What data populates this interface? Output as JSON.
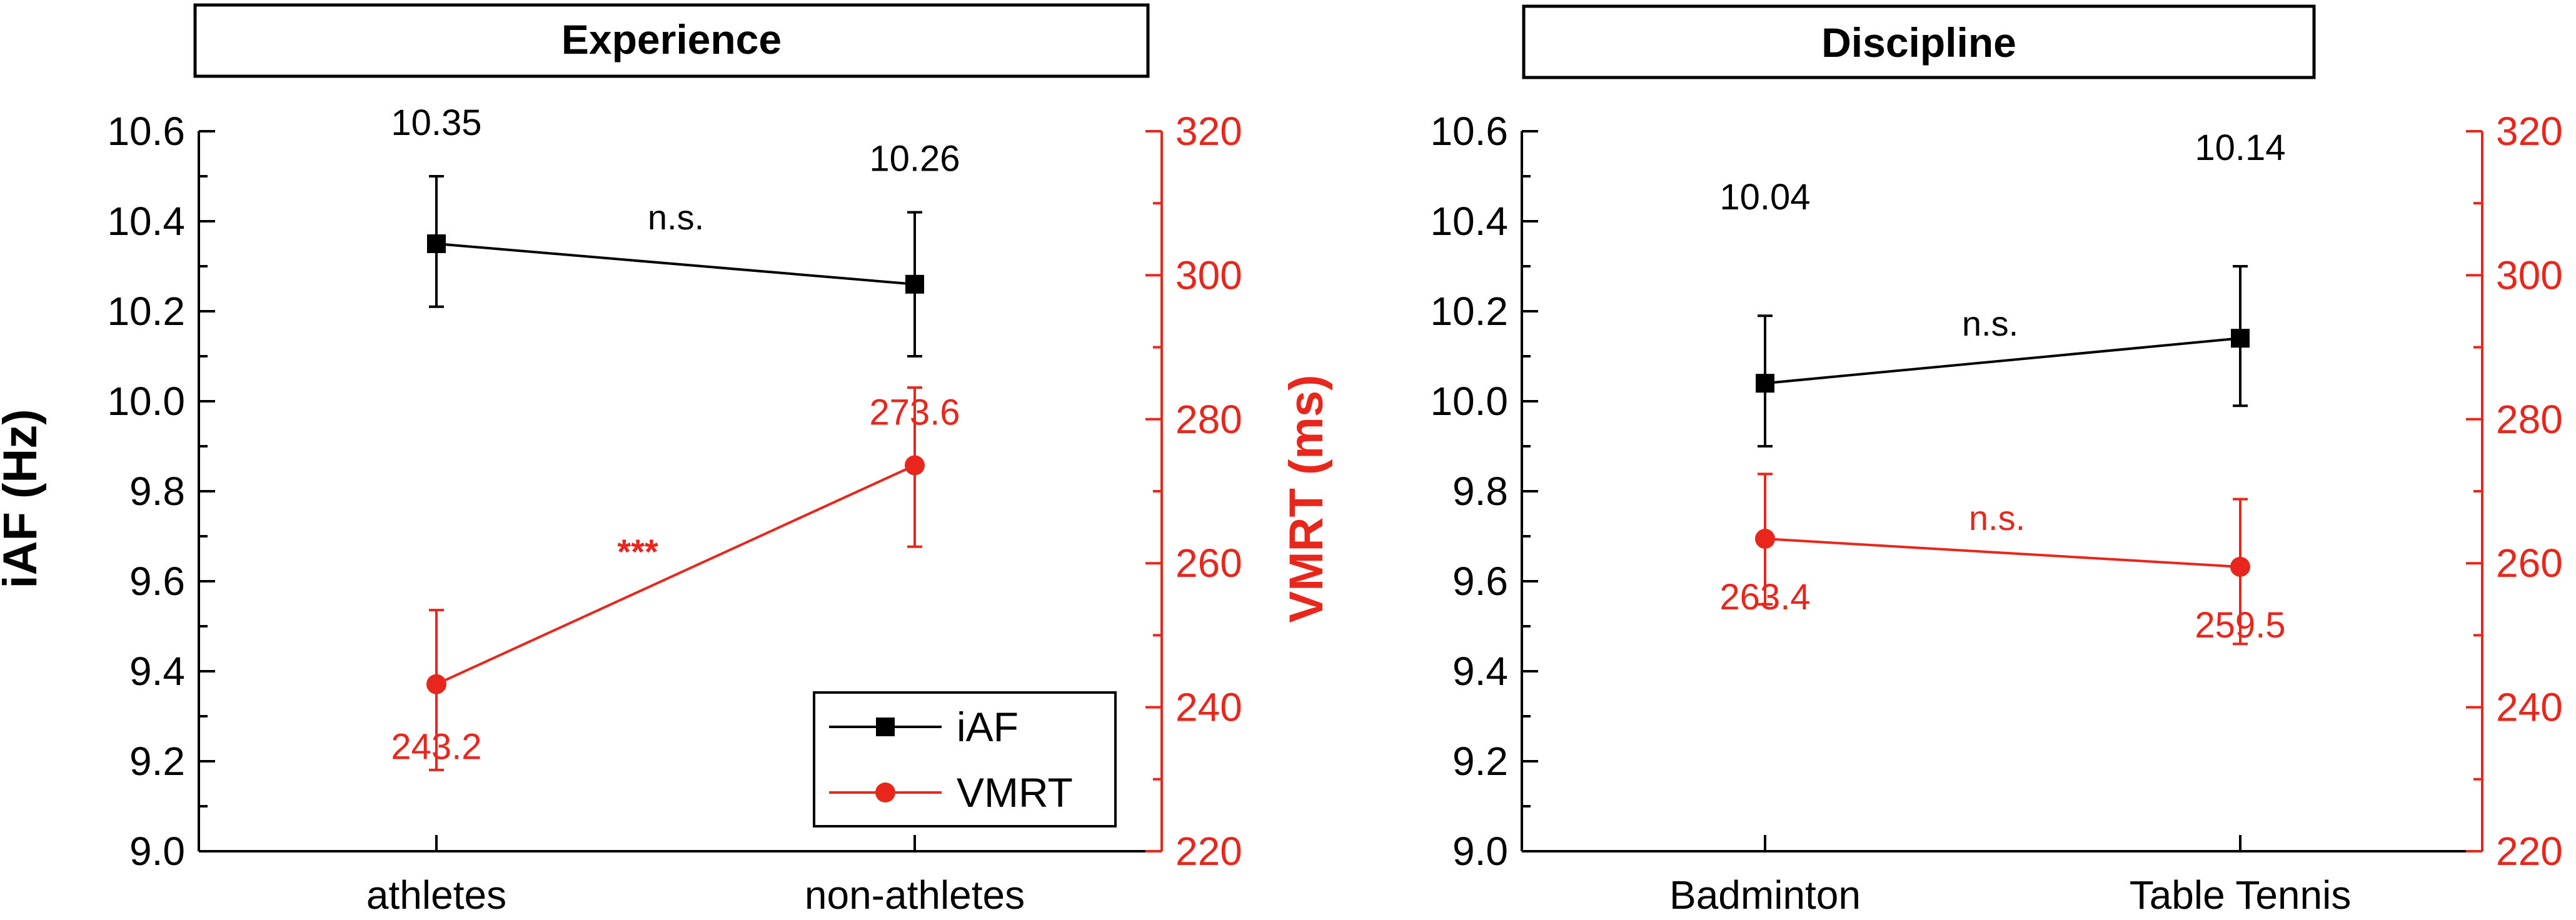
{
  "figure": {
    "colors": {
      "iaf": "#000000",
      "vmrt": "#e8261b",
      "axis": "#000000"
    },
    "y_left_label": "iAF (Hz)",
    "y_right_label": "VMRT (ms)",
    "legend": {
      "placement": "bottom-right of left panel",
      "entries": [
        "iAF",
        "VMRT"
      ]
    }
  },
  "chart_data": [
    {
      "type": "line",
      "title": "Experience",
      "categories": [
        "athletes",
        "non-athletes"
      ],
      "y_left": {
        "label": "iAF (Hz)",
        "lim": [
          9.0,
          10.6
        ],
        "ticks": [
          "9.0",
          "9.2",
          "9.4",
          "9.6",
          "9.8",
          "10.0",
          "10.2",
          "10.4",
          "10.6"
        ]
      },
      "y_right": {
        "label": "VMRT (ms)",
        "lim": [
          220,
          320
        ],
        "ticks": [
          "220",
          "240",
          "260",
          "280",
          "300",
          "320"
        ]
      },
      "series": [
        {
          "name": "iAF",
          "axis": "left",
          "marker": "square",
          "values": [
            10.35,
            10.26
          ],
          "err_low": [
            10.21,
            10.1
          ],
          "err_high": [
            10.5,
            10.42
          ],
          "labels": [
            "10.35",
            "10.26"
          ],
          "annotation": "n.s."
        },
        {
          "name": "VMRT",
          "axis": "right",
          "marker": "circle",
          "values": [
            243.2,
            273.6
          ],
          "err_low": [
            231.3,
            262.3
          ],
          "err_high": [
            253.5,
            284.4
          ],
          "labels": [
            "243.2",
            "273.6"
          ],
          "annotation": "***"
        }
      ],
      "legend": true,
      "grid": false
    },
    {
      "type": "line",
      "title": "Discipline",
      "categories": [
        "Badminton",
        "Table Tennis"
      ],
      "y_left": {
        "label": "",
        "lim": [
          9.0,
          10.6
        ],
        "ticks": [
          "9.0",
          "9.2",
          "9.4",
          "9.6",
          "9.8",
          "10.0",
          "10.2",
          "10.4",
          "10.6"
        ]
      },
      "y_right": {
        "label": "",
        "lim": [
          220,
          320
        ],
        "ticks": [
          "220",
          "240",
          "260",
          "280",
          "300",
          "320"
        ]
      },
      "series": [
        {
          "name": "iAF",
          "axis": "left",
          "marker": "square",
          "values": [
            10.04,
            10.14
          ],
          "err_low": [
            9.9,
            9.99
          ],
          "err_high": [
            10.19,
            10.3
          ],
          "labels": [
            "10.04",
            "10.14"
          ],
          "annotation": "n.s."
        },
        {
          "name": "VMRT",
          "axis": "right",
          "marker": "circle",
          "values": [
            263.4,
            259.5
          ],
          "err_low": [
            254.3,
            248.8
          ],
          "err_high": [
            272.4,
            268.9
          ],
          "labels": [
            "263.4",
            "259.5"
          ],
          "annotation": "n.s."
        }
      ],
      "legend": false,
      "grid": false
    }
  ]
}
